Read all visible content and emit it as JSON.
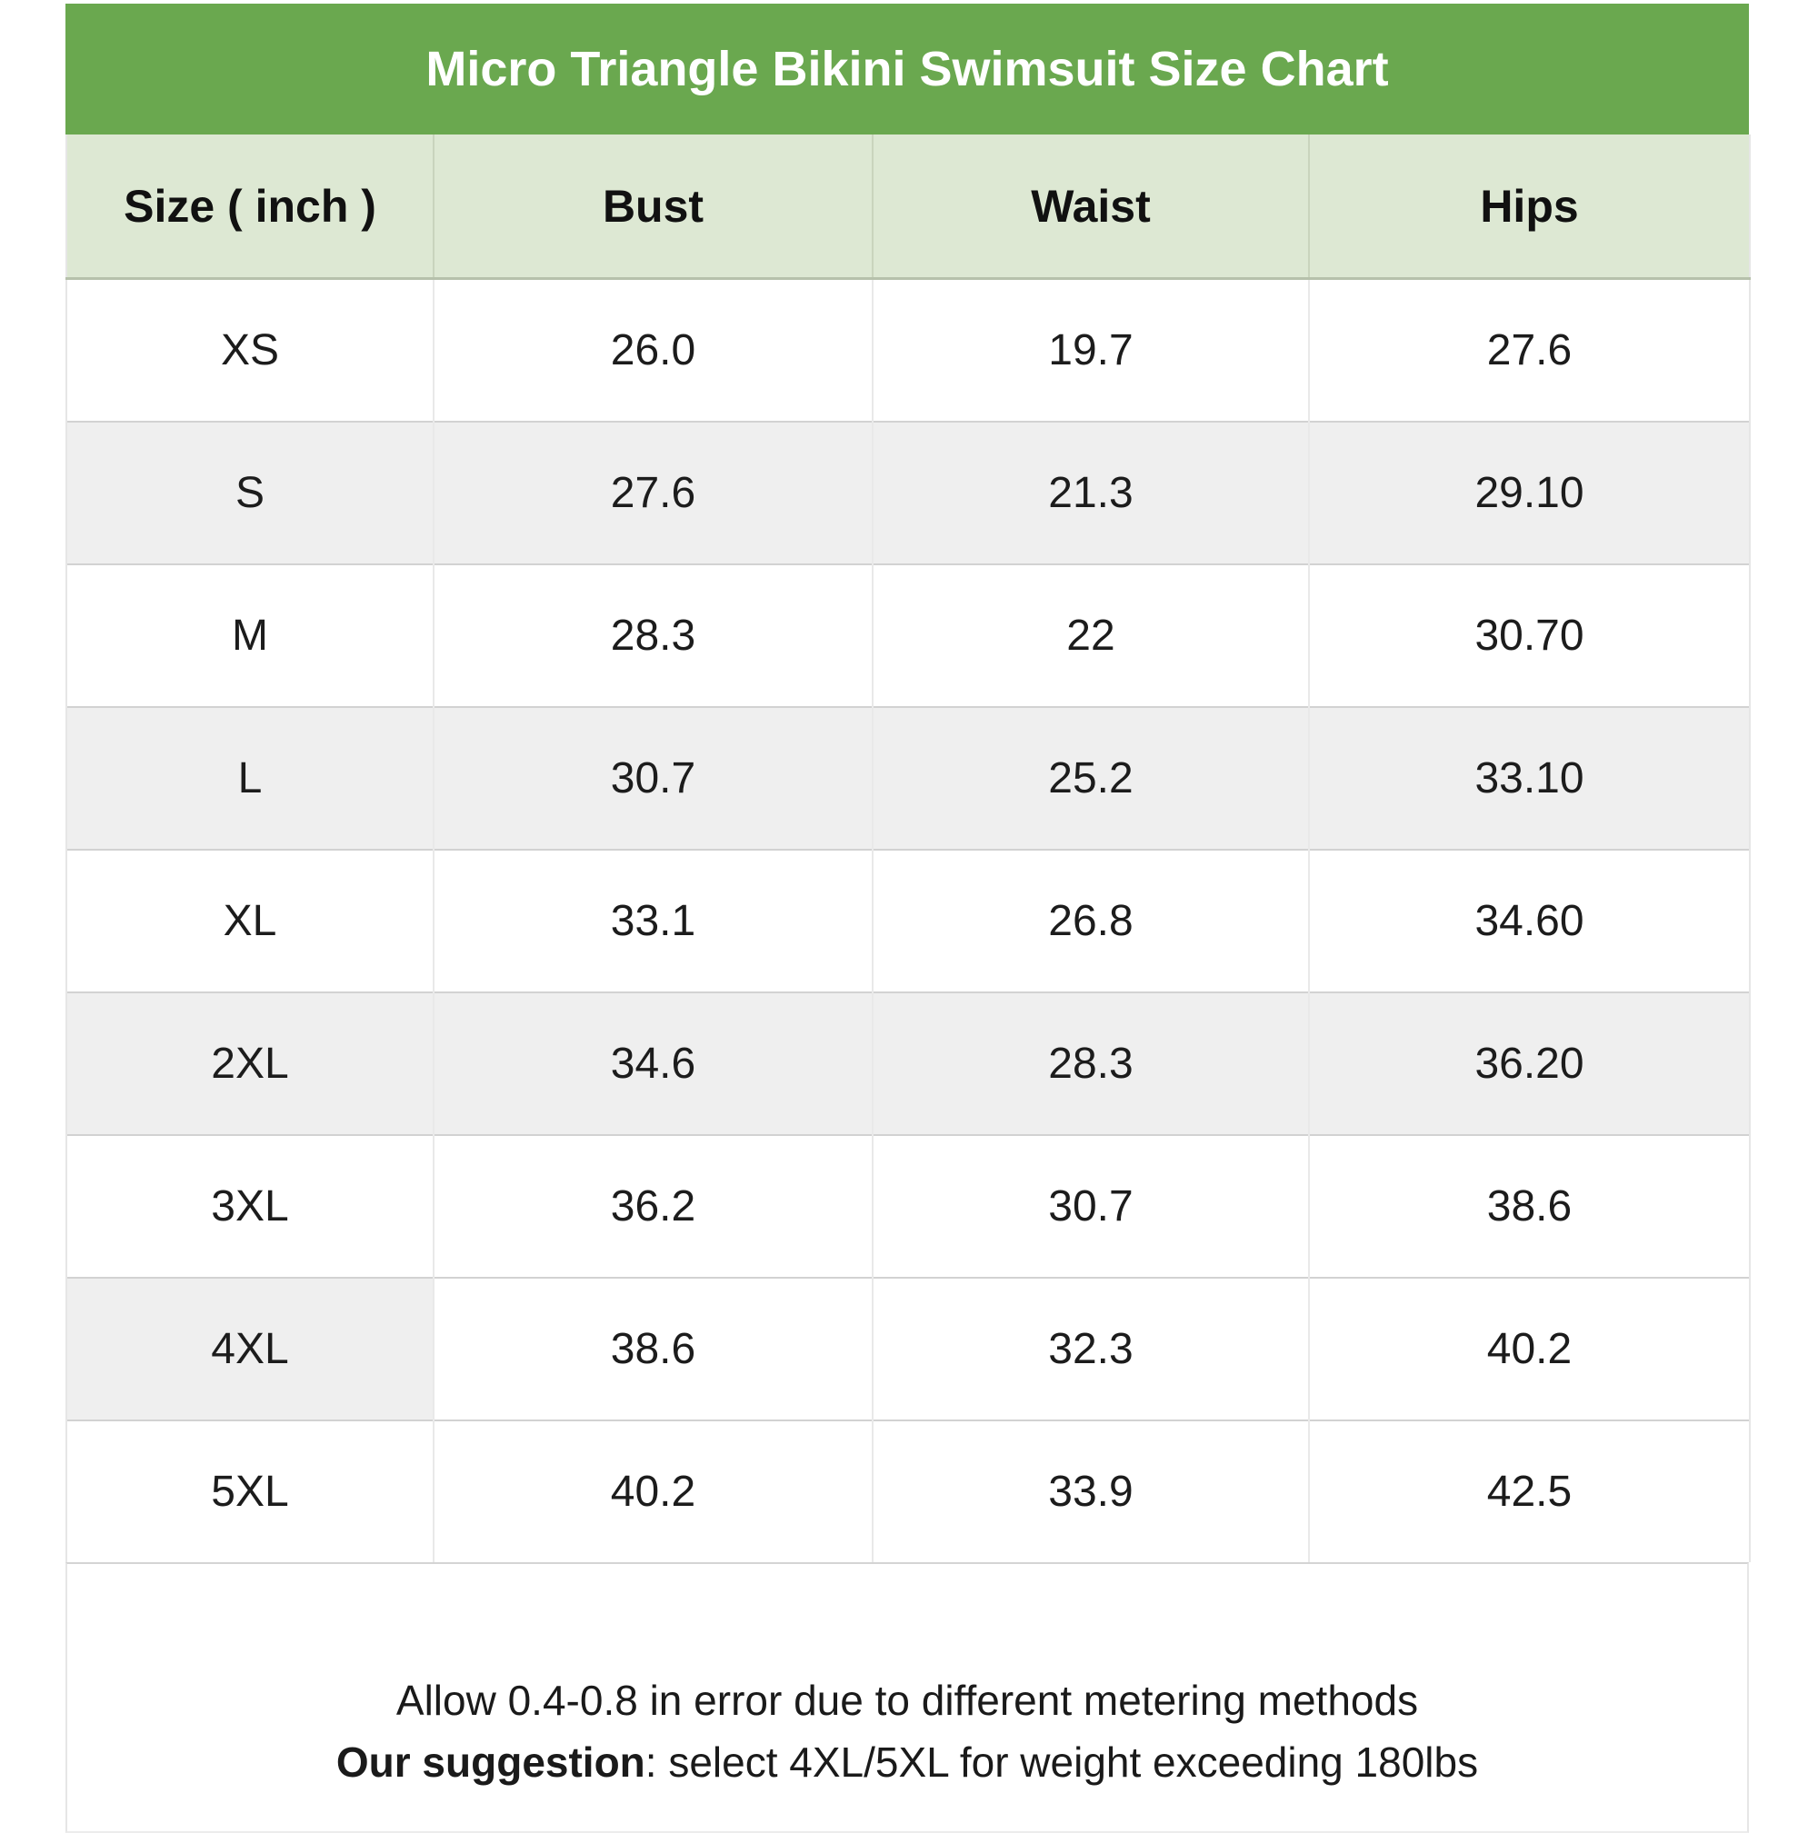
{
  "title": "Micro Triangle Bikini Swimsuit Size Chart",
  "chart_data": {
    "type": "table",
    "title": "Micro Triangle Bikini Swimsuit Size Chart",
    "unit": "inch",
    "columns": [
      "Size ( inch )",
      "Bust",
      "Waist",
      "Hips"
    ],
    "rows": [
      [
        "XS",
        "26.0",
        "19.7",
        "27.6"
      ],
      [
        "S",
        "27.6",
        "21.3",
        "29.10"
      ],
      [
        "M",
        "28.3",
        "22",
        "30.70"
      ],
      [
        "L",
        "30.7",
        "25.2",
        "33.10"
      ],
      [
        "XL",
        "33.1",
        "26.8",
        "34.60"
      ],
      [
        "2XL",
        "34.6",
        "28.3",
        "36.20"
      ],
      [
        "3XL",
        "36.2",
        "30.7",
        "38.6"
      ],
      [
        "4XL",
        "38.6",
        "32.3",
        "40.2"
      ],
      [
        "5XL",
        "40.2",
        "33.9",
        "42.5"
      ]
    ]
  },
  "footer": {
    "line1": "Allow 0.4-0.8 in error due to different metering methods",
    "line2_bold": "Our suggestion",
    "line2_rest": ": select 4XL/5XL for weight exceeding 180lbs"
  },
  "colors": {
    "title_bg": "#6aa84f",
    "head_row_bg": "#dde8d3",
    "alt_row_bg": "#efefef",
    "title_text": "#ffffff",
    "body_text": "#1c1c1c"
  }
}
